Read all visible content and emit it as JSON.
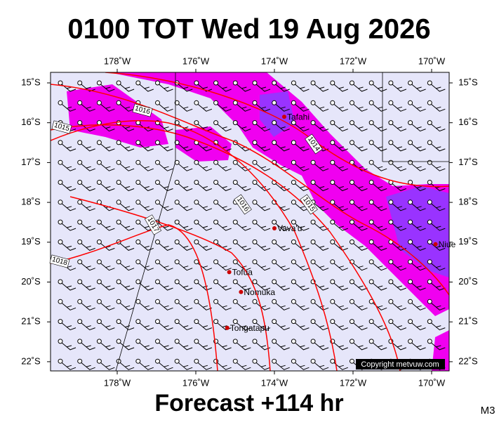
{
  "header": {
    "title": "0100 TOT Wed 19 Aug 2026"
  },
  "footer": {
    "forecast": "Forecast +114 hr",
    "code": "M3",
    "copyright": "Copyright metvuw.com"
  },
  "axes": {
    "lon_ticks": [
      {
        "value": -178,
        "label": "178˚W"
      },
      {
        "value": -176,
        "label": "176˚W"
      },
      {
        "value": -174,
        "label": "174˚W"
      },
      {
        "value": -172,
        "label": "172˚W"
      },
      {
        "value": -170,
        "label": "170˚W"
      }
    ],
    "lat_ticks": [
      {
        "value": -15,
        "label": "15˚S"
      },
      {
        "value": -16,
        "label": "16˚S"
      },
      {
        "value": -17,
        "label": "17˚S"
      },
      {
        "value": -18,
        "label": "18˚S"
      },
      {
        "value": -19,
        "label": "19˚S"
      },
      {
        "value": -20,
        "label": "20˚S"
      },
      {
        "value": -21,
        "label": "21˚S"
      },
      {
        "value": -22,
        "label": "22˚S"
      }
    ]
  },
  "places": [
    {
      "name": "Tafahi",
      "lon": -173.75,
      "lat": -15.85
    },
    {
      "name": "Vava'u",
      "lon": -174.0,
      "lat": -18.65
    },
    {
      "name": "Niue",
      "lon": -169.9,
      "lat": -19.05
    },
    {
      "name": "Tofua",
      "lon": -175.15,
      "lat": -19.75
    },
    {
      "name": "Nomuka",
      "lon": -174.85,
      "lat": -20.25
    },
    {
      "name": "Tongatapu",
      "lon": -175.2,
      "lat": -21.15
    }
  ],
  "isobar_labels": [
    "1016",
    "1015",
    "1014",
    "1016",
    "1015",
    "1017",
    "1018"
  ]
}
